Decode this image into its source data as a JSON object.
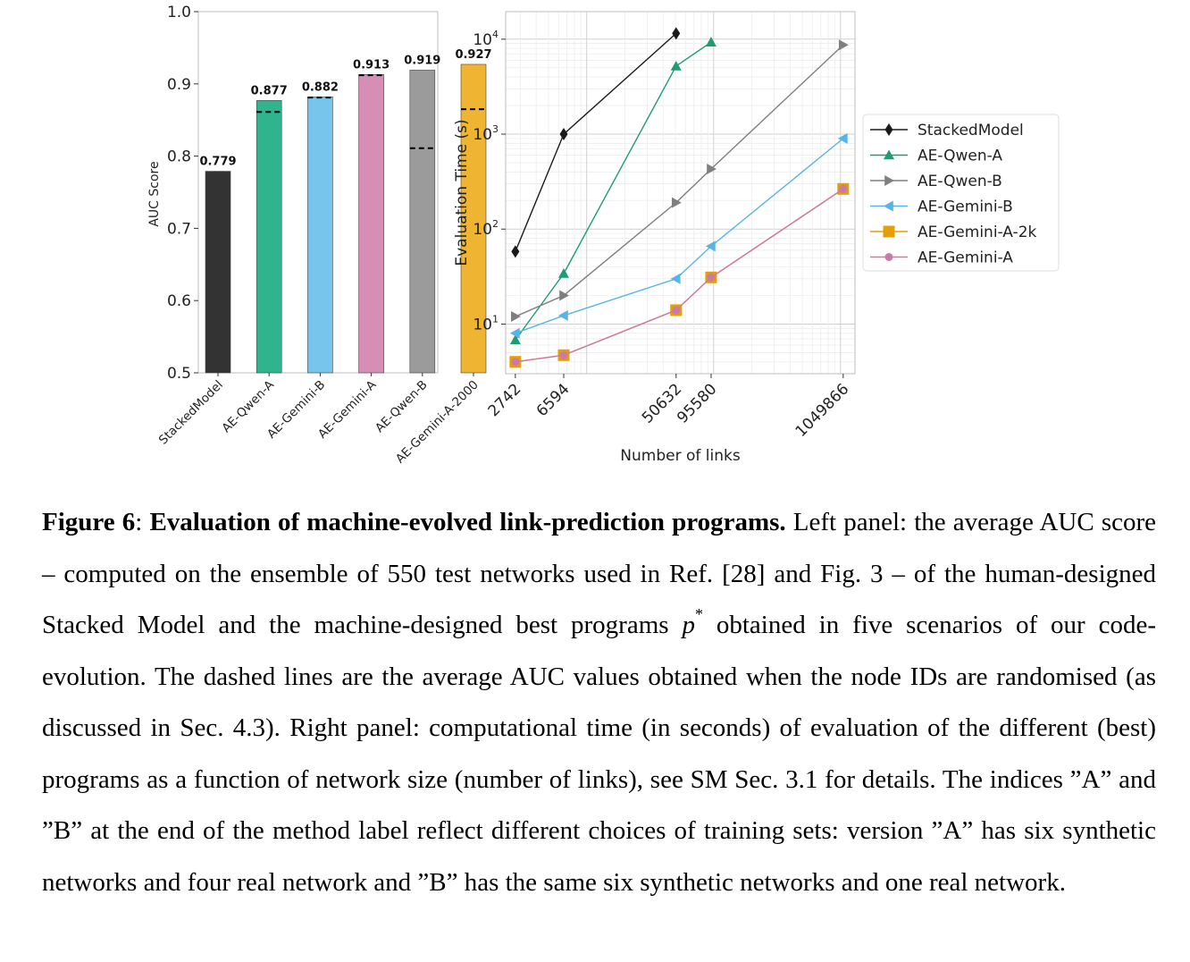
{
  "figure": {
    "left_panel": {
      "chart_data": {
        "type": "bar",
        "categories": [
          "StackedModel",
          "AE-Qwen-A",
          "AE-Gemini-B",
          "AE-Gemini-A",
          "AE-Qwen-B",
          "AE-Gemini-A-2000"
        ],
        "values": [
          0.779,
          0.877,
          0.882,
          0.913,
          0.919,
          0.927
        ],
        "value_labels": [
          "0.779",
          "0.877",
          "0.882",
          "0.913",
          "0.919",
          "0.927"
        ],
        "randomised_ids_values": [
          null,
          0.861,
          0.881,
          0.912,
          0.811,
          0.865
        ],
        "colors": [
          "#333333",
          "#2fb48e",
          "#77c4ec",
          "#d68eb7",
          "#9b9b9b",
          "#eeb432"
        ],
        "ylabel": "AUC Score",
        "xlabel": "",
        "ylim": [
          0.5,
          1.0
        ],
        "yticks": [
          "0.5",
          "0.6",
          "0.7",
          "0.8",
          "0.9",
          "1.0"
        ],
        "grid": false
      }
    },
    "right_panel": {
      "chart_data": {
        "type": "line",
        "xlabel": "Number of links",
        "ylabel": "Evaluation Time (s)",
        "x_scale": "log",
        "y_scale": "log",
        "xticks": [
          "2742",
          "6594",
          "50632",
          "95580",
          "1049866"
        ],
        "ytick_base": "10",
        "ytick_exponents": [
          "1",
          "2",
          "3",
          "4"
        ],
        "grid": true,
        "legend_position": "right",
        "series": [
          {
            "name": "StackedModel",
            "color": "#1a1a1a",
            "marker": "diamond",
            "x": [
              2742,
              6594,
              50632
            ],
            "y": [
              58,
              1000,
              11500
            ]
          },
          {
            "name": "AE-Qwen-A",
            "color": "#1f9c74",
            "marker": "triangle-up",
            "x": [
              2742,
              6594,
              50632,
              95580
            ],
            "y": [
              6.8,
              34,
              5200,
              9300
            ]
          },
          {
            "name": "AE-Qwen-B",
            "color": "#7f7f7f",
            "marker": "triangle-right",
            "x": [
              2742,
              6594,
              50632,
              95580,
              1049866
            ],
            "y": [
              12,
              20,
              190,
              430,
              8700
            ]
          },
          {
            "name": "AE-Gemini-B",
            "color": "#56b4e9",
            "marker": "triangle-left",
            "x": [
              2742,
              6594,
              50632,
              95580,
              1049866
            ],
            "y": [
              8,
              12.3,
              30,
              66,
              900
            ]
          },
          {
            "name": "AE-Gemini-A-2k",
            "color": "#e69f00",
            "marker": "square",
            "x": [
              2742,
              6594,
              50632,
              95580,
              1049866
            ],
            "y": [
              4,
              4.7,
              14,
              31,
              265
            ]
          },
          {
            "name": "AE-Gemini-A",
            "color": "#cc79a7",
            "marker": "circle",
            "x": [
              2742,
              6594,
              50632,
              95580,
              1049866
            ],
            "y": [
              4,
              4.7,
              14,
              31,
              265
            ]
          }
        ]
      }
    }
  },
  "caption": {
    "label": "Figure 6",
    "colon": ": ",
    "title": "Evaluation of machine-evolved link-prediction programs.",
    "text_1": " Left panel: the average AUC score – computed on the ensemble of 550 test networks used in Ref. [28] and Fig. 3 – of the human-designed Stacked Model and the machine-designed best programs ",
    "math_p": "p",
    "math_sup": "*",
    "text_2": " obtained in five scenarios of our code-evolution. The dashed lines are the average AUC values obtained when the node IDs are randomised (as discussed in Sec. 4.3). Right panel: computational time (in seconds) of evaluation of the different (best) programs as a function of network size (number of links), see SM Sec. 3.1 for details. The indices ”A” and ”B” at the end of the method label reflect different choices of training sets: version ”A” has six synthetic networks and four real network and ”B” has the same six synthetic networks and one real network."
  }
}
